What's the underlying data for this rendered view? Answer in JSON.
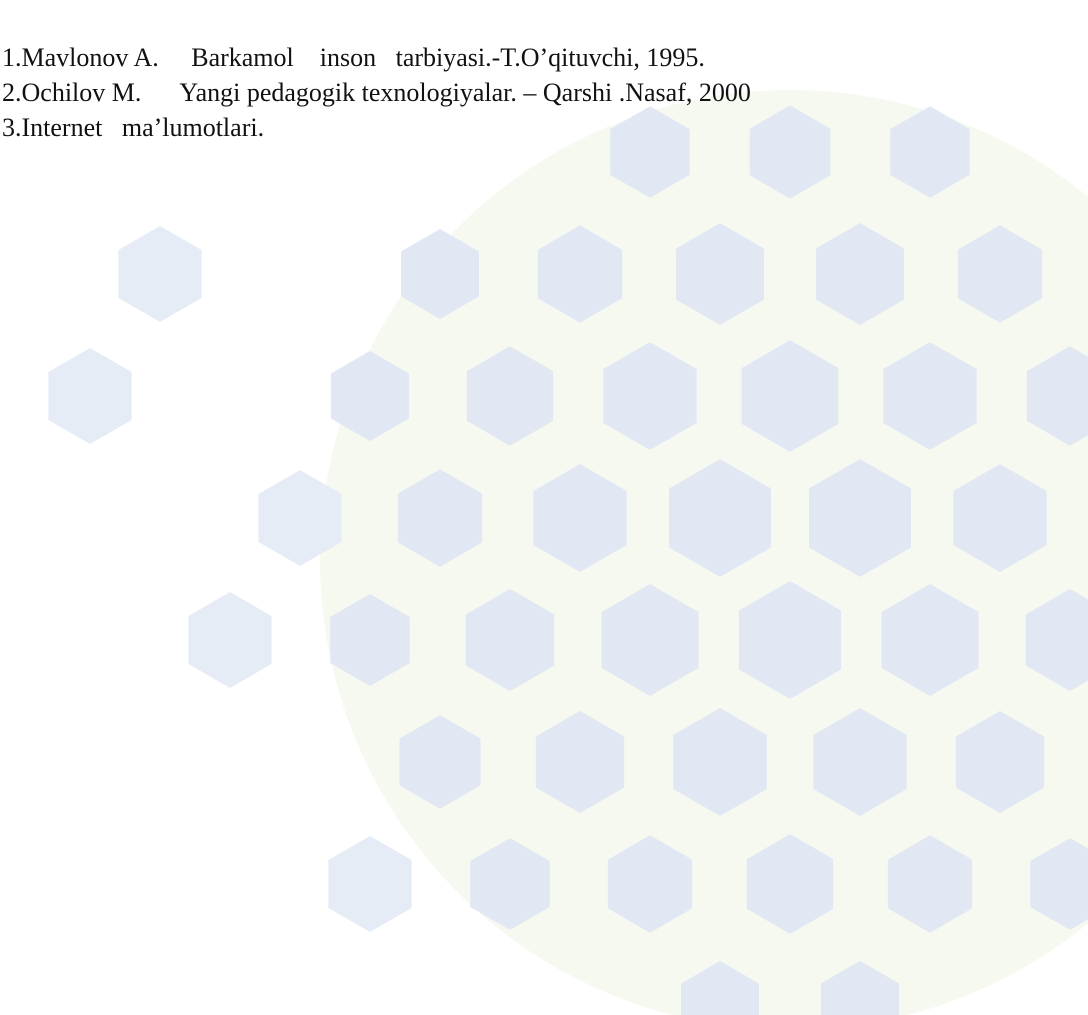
{
  "references": [
    "1.Mavlonov A.     Barkamol    inson   tarbiyasi.-T.O’qituvchi, 1995.",
    "2.Ochilov M.      Yangi pedagogik texnologiyalar. – Qarshi .Nasaf, 2000",
    "3.Internet   ma’lumotlari."
  ]
}
